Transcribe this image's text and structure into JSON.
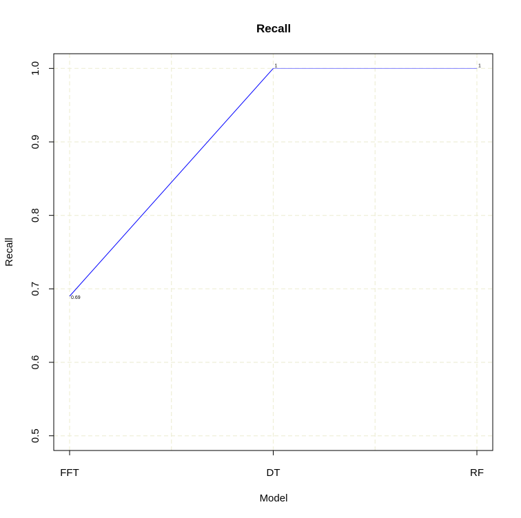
{
  "chart_data": {
    "type": "line",
    "title": "Recall",
    "xlabel": "Model",
    "ylabel": "Recall",
    "categories": [
      "FFT",
      "DT",
      "RF"
    ],
    "series": [
      {
        "values": [
          0.69,
          1,
          1
        ],
        "labels": [
          "0.69",
          "1",
          "1"
        ],
        "segment_colors": [
          "#0000ff",
          "#8080ff"
        ]
      }
    ],
    "yticks": [
      0.5,
      0.6,
      0.7,
      0.8,
      0.9,
      1.0
    ],
    "ytick_labels": [
      "0.5",
      "0.6",
      "0.7",
      "0.8",
      "0.9",
      "1.0"
    ],
    "ylim": [
      0.48,
      1.02
    ],
    "grid": true,
    "grid_color": "#eeeed6",
    "axis_color": "#000000"
  }
}
